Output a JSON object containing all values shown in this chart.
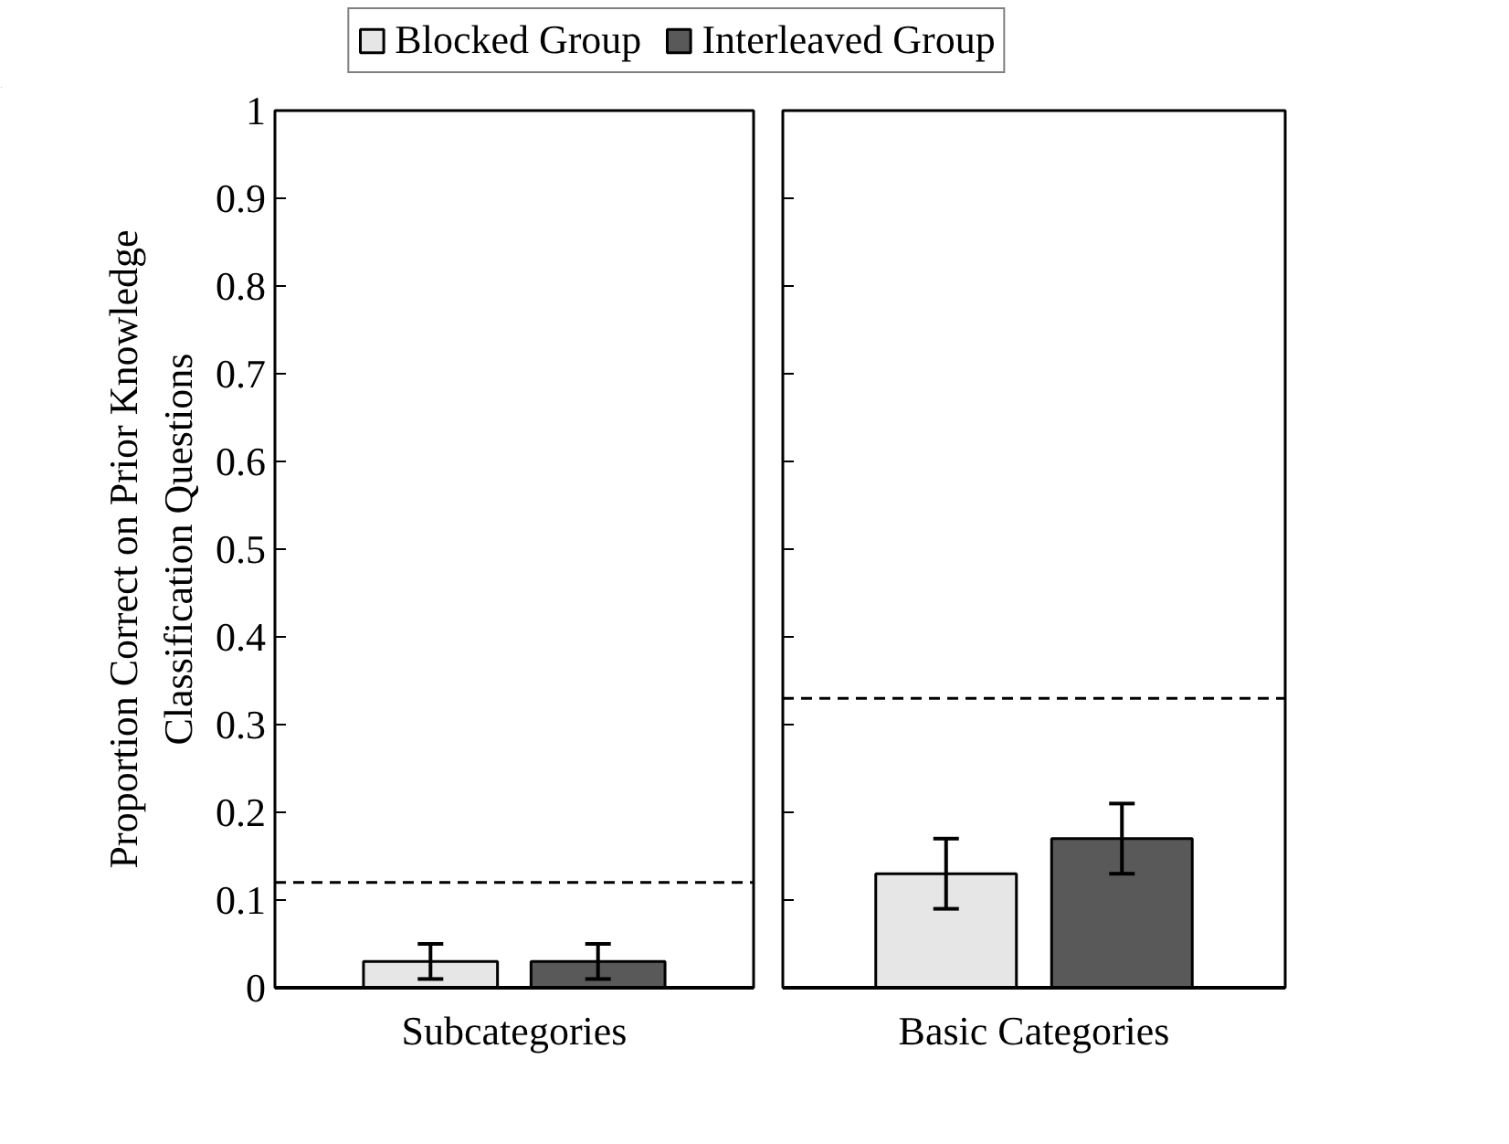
{
  "chart_data": [
    {
      "type": "bar",
      "categories": [
        "Subcategories"
      ],
      "ylabel": "Proportion Correct on Prior Knowledge\nClassification Questions",
      "ylim": [
        0,
        1
      ],
      "yticks": [
        0,
        0.1,
        0.2,
        0.3,
        0.4,
        0.5,
        0.6,
        0.7,
        0.8,
        0.9,
        1
      ],
      "legend": "top",
      "grid": false,
      "series": [
        {
          "name": "Blocked Group",
          "color": "#e6e6e6",
          "values": [
            0.03
          ],
          "errors": [
            0.02
          ]
        },
        {
          "name": "Interleaved Group",
          "color": "#595959",
          "values": [
            0.03
          ],
          "errors": [
            0.02
          ]
        }
      ],
      "ref_lines": [
        {
          "axis": "y",
          "value": 0.12,
          "line_style": "dashed"
        }
      ]
    },
    {
      "type": "bar",
      "categories": [
        "Basic Categories"
      ],
      "ylim": [
        0,
        1
      ],
      "yticks": [
        0,
        0.1,
        0.2,
        0.3,
        0.4,
        0.5,
        0.6,
        0.7,
        0.8,
        0.9,
        1
      ],
      "tick_labels": "x",
      "grid": false,
      "series": [
        {
          "color": "#e6e6e6",
          "values": [
            0.13
          ],
          "errors": [
            0.04
          ]
        },
        {
          "color": "#595959",
          "values": [
            0.17
          ],
          "errors": [
            0.04
          ]
        }
      ],
      "ref_lines": [
        {
          "axis": "y",
          "value": 0.33,
          "line_style": "dashed"
        }
      ]
    }
  ]
}
